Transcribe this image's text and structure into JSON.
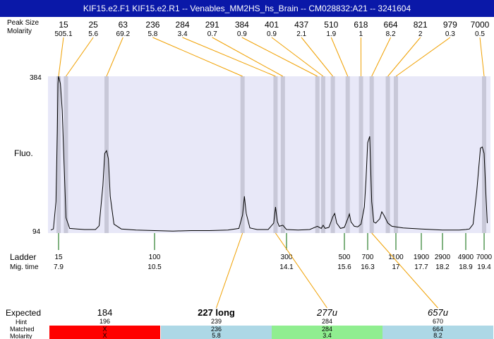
{
  "title": "KIF15.e2.F1  KIF15.e2.R1 -- Venables_MM2HS_hs_Brain -- CM028832:A21 -- 3241604",
  "labels": {
    "peak_size": "Peak Size",
    "molarity": "Molarity",
    "fluo": "Fluo.",
    "ladder": "Ladder",
    "mig_time": "Mig. time",
    "expected": "Expected",
    "hint": "Hint",
    "matched": "Matched",
    "molarity_bottom": "Molarity"
  },
  "colors": {
    "title_bg": "#0a18a8",
    "plot_bg": "#e8e8f8",
    "peak_band": "#c8c8d8",
    "connector": "#f0a000",
    "ladder_tick": "#006400",
    "red": "#ff0000",
    "lightblue": "#add8e6",
    "lightgreen": "#90ee90"
  },
  "chart_data": {
    "type": "line",
    "y_axis": {
      "min": 94,
      "max": 384,
      "ticks": [
        "384",
        "94"
      ],
      "label": "Fluo."
    },
    "x_axis": {
      "label": "Mig. time",
      "type": "migration time (s)"
    },
    "peaks": [
      {
        "size": "15",
        "molarity": "505.1",
        "time": 7.9
      },
      {
        "size": "25",
        "molarity": "5.6",
        "time": 8.1
      },
      {
        "size": "63",
        "molarity": "69.2",
        "time": 9.2
      },
      {
        "size": "236",
        "molarity": "5.8",
        "time": 12.9
      },
      {
        "size": "284",
        "molarity": "3.4",
        "time": 13.8
      },
      {
        "size": "291",
        "molarity": "0.7",
        "time": 14.0
      },
      {
        "size": "384",
        "molarity": "0.9",
        "time": 14.9
      },
      {
        "size": "401",
        "molarity": "0.9",
        "time": 15.05
      },
      {
        "size": "437",
        "molarity": "2.1",
        "time": 15.3
      },
      {
        "size": "510",
        "molarity": "1.9",
        "time": 15.7
      },
      {
        "size": "618",
        "molarity": "1",
        "time": 16.1
      },
      {
        "size": "664",
        "molarity": "8.2",
        "time": 16.4
      },
      {
        "size": "821",
        "molarity": "2",
        "time": 16.8
      },
      {
        "size": "979",
        "molarity": "0.3",
        "time": 17.0
      },
      {
        "size": "7000",
        "molarity": "0.5",
        "time": 19.4
      }
    ],
    "ladder": [
      {
        "size": "15",
        "time": "7.9"
      },
      {
        "size": "100",
        "time": "10.5"
      },
      {
        "size": "300",
        "time": "14.1"
      },
      {
        "size": "500",
        "time": "15.6"
      },
      {
        "size": "700",
        "time": "16.3"
      },
      {
        "size": "1100",
        "time": "17"
      },
      {
        "size": "1900",
        "time": "17.7"
      },
      {
        "size": "2900",
        "time": "18.2"
      },
      {
        "size": "4900",
        "time": "18.9"
      },
      {
        "size": "7000",
        "time": "19.4"
      }
    ],
    "trace": [
      [
        7.3,
        97
      ],
      [
        7.5,
        99
      ],
      [
        7.7,
        150
      ],
      [
        7.8,
        280
      ],
      [
        7.85,
        370
      ],
      [
        7.9,
        384
      ],
      [
        7.95,
        370
      ],
      [
        8.0,
        320
      ],
      [
        8.05,
        220
      ],
      [
        8.1,
        120
      ],
      [
        8.2,
        100
      ],
      [
        8.4,
        99
      ],
      [
        8.6,
        98
      ],
      [
        8.9,
        98
      ],
      [
        9.0,
        105
      ],
      [
        9.1,
        180
      ],
      [
        9.15,
        240
      ],
      [
        9.2,
        245
      ],
      [
        9.25,
        230
      ],
      [
        9.3,
        160
      ],
      [
        9.4,
        108
      ],
      [
        9.6,
        99
      ],
      [
        10.0,
        97
      ],
      [
        10.5,
        96
      ],
      [
        11.0,
        95
      ],
      [
        11.5,
        96
      ],
      [
        12.0,
        96
      ],
      [
        12.5,
        97
      ],
      [
        12.8,
        100
      ],
      [
        12.9,
        125
      ],
      [
        12.95,
        160
      ],
      [
        13.0,
        128
      ],
      [
        13.1,
        101
      ],
      [
        13.3,
        98
      ],
      [
        13.6,
        98
      ],
      [
        13.75,
        110
      ],
      [
        13.8,
        140
      ],
      [
        13.85,
        113
      ],
      [
        13.9,
        104
      ],
      [
        14.0,
        106
      ],
      [
        14.1,
        98
      ],
      [
        14.4,
        97
      ],
      [
        14.7,
        98
      ],
      [
        14.9,
        104
      ],
      [
        15.0,
        100
      ],
      [
        15.05,
        106
      ],
      [
        15.1,
        100
      ],
      [
        15.2,
        102
      ],
      [
        15.3,
        122
      ],
      [
        15.35,
        128
      ],
      [
        15.4,
        110
      ],
      [
        15.5,
        100
      ],
      [
        15.6,
        102
      ],
      [
        15.7,
        118
      ],
      [
        15.75,
        127
      ],
      [
        15.8,
        112
      ],
      [
        15.9,
        104
      ],
      [
        16.0,
        103
      ],
      [
        16.1,
        108
      ],
      [
        16.2,
        140
      ],
      [
        16.25,
        190
      ],
      [
        16.3,
        260
      ],
      [
        16.35,
        272
      ],
      [
        16.4,
        150
      ],
      [
        16.45,
        112
      ],
      [
        16.5,
        110
      ],
      [
        16.6,
        118
      ],
      [
        16.65,
        131
      ],
      [
        16.7,
        125
      ],
      [
        16.8,
        110
      ],
      [
        16.9,
        104
      ],
      [
        17.2,
        101
      ],
      [
        17.7,
        99
      ],
      [
        18.2,
        97
      ],
      [
        18.7,
        97
      ],
      [
        18.9,
        98
      ],
      [
        19.0,
        99
      ],
      [
        19.1,
        108
      ],
      [
        19.2,
        170
      ],
      [
        19.3,
        250
      ],
      [
        19.35,
        252
      ],
      [
        19.4,
        240
      ],
      [
        19.45,
        170
      ],
      [
        19.5,
        110
      ]
    ]
  },
  "expected": [
    {
      "expected": "184",
      "hint": "196",
      "matched": "X",
      "molarity": "X",
      "color": "#ff0000",
      "style": "normal"
    },
    {
      "expected": "227 long",
      "hint": "239",
      "matched": "236",
      "molarity": "5.8",
      "color": "#add8e6",
      "style": "bold"
    },
    {
      "expected": "277u",
      "hint": "284",
      "matched": "284",
      "molarity": "3.4",
      "color": "#90ee90",
      "style": "italic"
    },
    {
      "expected": "657u",
      "hint": "670",
      "matched": "664",
      "molarity": "8.2",
      "color": "#add8e6",
      "style": "italic"
    }
  ]
}
